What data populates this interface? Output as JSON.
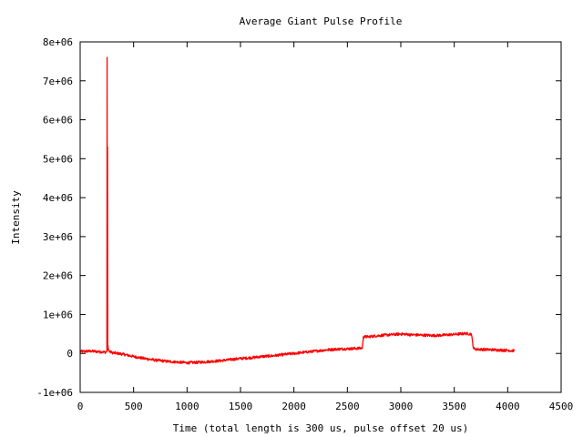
{
  "chart_data": {
    "type": "line",
    "title": "Average Giant Pulse Profile",
    "xlabel": "Time (total length is 300 us, pulse offset 20 us)",
    "ylabel": "Intensity",
    "xlim": [
      0,
      4500
    ],
    "ylim": [
      -1000000,
      8000000
    ],
    "x_ticks": [
      {
        "value": 0,
        "label": "0"
      },
      {
        "value": 500,
        "label": "500"
      },
      {
        "value": 1000,
        "label": "1000"
      },
      {
        "value": 1500,
        "label": "1500"
      },
      {
        "value": 2000,
        "label": "2000"
      },
      {
        "value": 2500,
        "label": "2500"
      },
      {
        "value": 3000,
        "label": "3000"
      },
      {
        "value": 3500,
        "label": "3500"
      },
      {
        "value": 4000,
        "label": "4000"
      },
      {
        "value": 4500,
        "label": "4500"
      }
    ],
    "y_ticks": [
      {
        "value": -1000000,
        "label": "-1e+06"
      },
      {
        "value": 0,
        "label": "0"
      },
      {
        "value": 1000000,
        "label": "1e+06"
      },
      {
        "value": 2000000,
        "label": "2e+06"
      },
      {
        "value": 3000000,
        "label": "3e+06"
      },
      {
        "value": 4000000,
        "label": "4e+06"
      },
      {
        "value": 5000000,
        "label": "5e+06"
      },
      {
        "value": 6000000,
        "label": "6e+06"
      },
      {
        "value": 7000000,
        "label": "7e+06"
      },
      {
        "value": 8000000,
        "label": "8e+06"
      }
    ],
    "grid": false,
    "legend": "none",
    "series": [
      {
        "color": "#ff0000",
        "x": [
          0,
          100,
          200,
          240,
          250,
          252,
          254,
          256,
          258,
          260,
          262,
          264,
          266,
          268,
          270,
          280,
          300,
          400,
          500,
          600,
          700,
          800,
          900,
          1000,
          1100,
          1200,
          1300,
          1400,
          1500,
          1600,
          1700,
          1800,
          1900,
          2000,
          2100,
          2200,
          2300,
          2400,
          2500,
          2600,
          2640,
          2650,
          2700,
          2800,
          2900,
          3000,
          3100,
          3200,
          3300,
          3400,
          3500,
          3600,
          3660,
          3680,
          3700,
          3800,
          3900,
          4000,
          4060
        ],
        "y": [
          50000,
          60000,
          40000,
          30000,
          50000,
          7600000,
          300000,
          5300000,
          100000,
          200000,
          150000,
          80000,
          100000,
          90000,
          60000,
          40000,
          20000,
          -20000,
          -80000,
          -130000,
          -170000,
          -200000,
          -220000,
          -240000,
          -230000,
          -210000,
          -190000,
          -160000,
          -130000,
          -110000,
          -80000,
          -60000,
          -30000,
          0,
          30000,
          60000,
          90000,
          110000,
          120000,
          130000,
          140000,
          430000,
          430000,
          460000,
          480000,
          500000,
          480000,
          470000,
          460000,
          470000,
          490000,
          510000,
          500000,
          130000,
          110000,
          100000,
          90000,
          80000,
          70000
        ]
      }
    ]
  }
}
